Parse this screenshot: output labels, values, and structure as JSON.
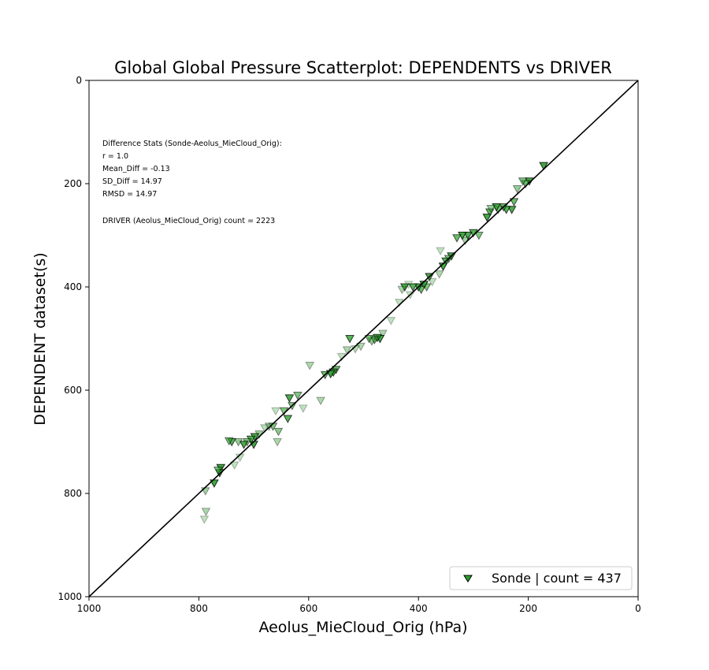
{
  "chart_data": {
    "type": "scatter",
    "title": "Global Global Pressure Scatterplot: DEPENDENTS vs DRIVER",
    "xlabel": "Aeolus_MieCloud_Orig (hPa)",
    "ylabel": "DEPENDENT dataset(s)",
    "xlim": [
      1000,
      0
    ],
    "ylim": [
      1000,
      0
    ],
    "x_ticks": [
      "1000",
      "800",
      "600",
      "400",
      "200",
      "0"
    ],
    "y_ticks": [
      "0",
      "200",
      "400",
      "600",
      "800",
      "1000"
    ],
    "grid": false,
    "marker": "triangle-down",
    "marker_color": "#2ca02c",
    "one_to_one_line": true,
    "stats_lines": [
      "Difference Stats (Sonde-Aeolus_MieCloud_Orig):",
      "r = 1.0",
      "Mean_Diff = -0.13",
      "SD_Diff = 14.97",
      "RMSD = 14.97",
      "",
      "DRIVER (Aeolus_MieCloud_Orig) count = 2223"
    ],
    "legend": {
      "position": "bottom-right",
      "label": "Sonde | count = 437"
    },
    "series": [
      {
        "name": "Sonde | count = 437",
        "points": [
          [
            172,
            165,
            0.9
          ],
          [
            198,
            195,
            0.85
          ],
          [
            205,
            200,
            0.7
          ],
          [
            210,
            195,
            0.6
          ],
          [
            220,
            210,
            0.5
          ],
          [
            226,
            235,
            0.7
          ],
          [
            230,
            250,
            0.85
          ],
          [
            240,
            250,
            0.8
          ],
          [
            245,
            245,
            0.75
          ],
          [
            255,
            250,
            0.6
          ],
          [
            258,
            245,
            0.9
          ],
          [
            270,
            255,
            0.75
          ],
          [
            275,
            265,
            0.9
          ],
          [
            268,
            248,
            0.5
          ],
          [
            290,
            300,
            0.6
          ],
          [
            300,
            295,
            0.8
          ],
          [
            310,
            300,
            0.85
          ],
          [
            315,
            310,
            0.45
          ],
          [
            320,
            300,
            0.9
          ],
          [
            330,
            305,
            0.7
          ],
          [
            340,
            340,
            0.85
          ],
          [
            345,
            345,
            0.6
          ],
          [
            350,
            350,
            0.8
          ],
          [
            355,
            360,
            0.9
          ],
          [
            360,
            330,
            0.3
          ],
          [
            362,
            375,
            0.4
          ],
          [
            375,
            390,
            0.3
          ],
          [
            380,
            380,
            0.85
          ],
          [
            385,
            400,
            0.6
          ],
          [
            390,
            395,
            0.9
          ],
          [
            395,
            405,
            0.7
          ],
          [
            400,
            400,
            0.85
          ],
          [
            410,
            400,
            0.8
          ],
          [
            415,
            415,
            0.3
          ],
          [
            418,
            395,
            0.25
          ],
          [
            425,
            400,
            0.85
          ],
          [
            430,
            405,
            0.4
          ],
          [
            435,
            430,
            0.3
          ],
          [
            450,
            465,
            0.3
          ],
          [
            465,
            490,
            0.4
          ],
          [
            470,
            500,
            0.9
          ],
          [
            475,
            498,
            0.85
          ],
          [
            480,
            502,
            0.7
          ],
          [
            485,
            505,
            0.5
          ],
          [
            490,
            500,
            0.6
          ],
          [
            505,
            515,
            0.4
          ],
          [
            515,
            520,
            0.35
          ],
          [
            525,
            500,
            0.8
          ],
          [
            530,
            522,
            0.4
          ],
          [
            540,
            535,
            0.3
          ],
          [
            550,
            560,
            0.7
          ],
          [
            555,
            565,
            0.85
          ],
          [
            560,
            568,
            0.9
          ],
          [
            570,
            570,
            0.7
          ],
          [
            578,
            620,
            0.4
          ],
          [
            598,
            552,
            0.4
          ],
          [
            610,
            635,
            0.3
          ],
          [
            620,
            610,
            0.6
          ],
          [
            630,
            630,
            0.6
          ],
          [
            635,
            615,
            0.85
          ],
          [
            638,
            655,
            0.8
          ],
          [
            645,
            640,
            0.6
          ],
          [
            655,
            680,
            0.55
          ],
          [
            657,
            700,
            0.4
          ],
          [
            660,
            640,
            0.3
          ],
          [
            665,
            670,
            0.6
          ],
          [
            672,
            670,
            0.45
          ],
          [
            680,
            673,
            0.35
          ],
          [
            690,
            685,
            0.45
          ],
          [
            698,
            690,
            0.85
          ],
          [
            700,
            705,
            0.9
          ],
          [
            705,
            695,
            0.8
          ],
          [
            712,
            700,
            0.6
          ],
          [
            718,
            705,
            0.85
          ],
          [
            725,
            730,
            0.3
          ],
          [
            728,
            700,
            0.5
          ],
          [
            735,
            745,
            0.3
          ],
          [
            740,
            700,
            0.8
          ],
          [
            745,
            698,
            0.6
          ],
          [
            760,
            750,
            0.9
          ],
          [
            762,
            760,
            0.85
          ],
          [
            765,
            755,
            0.6
          ],
          [
            772,
            780,
            0.9
          ],
          [
            788,
            795,
            0.45
          ],
          [
            787,
            835,
            0.4
          ],
          [
            790,
            850,
            0.3
          ]
        ]
      }
    ]
  }
}
